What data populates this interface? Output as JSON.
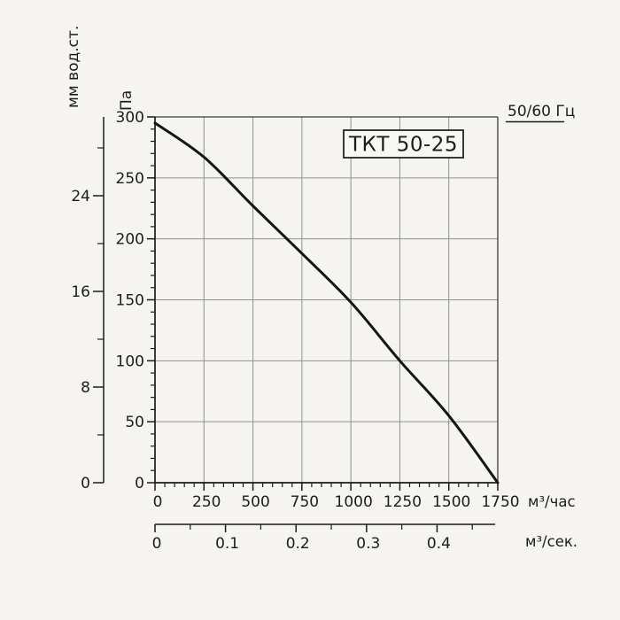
{
  "labels": {
    "title": "ТКТ 50-25",
    "frequency": "50/60 Гц",
    "pa_unit": "Па",
    "mm_unit": "мм вод.ст.",
    "flow_hour_unit": "м³/час",
    "flow_sec_unit": "м³/сек."
  },
  "colors": {
    "background": "#f5f4f0",
    "curve": "#151515",
    "grid": "#919191",
    "axis": "#1b1b1b",
    "border": "#3a3a3a",
    "text": "#1c1c1c"
  },
  "chart_data": {
    "type": "line",
    "title": "ТКТ 50-25",
    "annotations": [
      "50/60 Гц"
    ],
    "xlabel": "м³/час",
    "ylabel": "Па",
    "xlim": [
      0,
      1750
    ],
    "ylim": [
      0,
      300
    ],
    "grid": true,
    "series": [
      {
        "name": "ТКТ 50-25",
        "x": [
          0,
          250,
          500,
          750,
          1000,
          1250,
          1500,
          1750
        ],
        "values": [
          295,
          267,
          227,
          188,
          148,
          100,
          55,
          0
        ]
      }
    ],
    "x_axis": {
      "unit": "м³/час",
      "major_ticks": [
        0,
        250,
        500,
        750,
        1000,
        1250,
        1500,
        1750
      ],
      "minor_step": 50
    },
    "y_axis": {
      "unit": "Па",
      "major_ticks": [
        0,
        50,
        100,
        150,
        200,
        250,
        300
      ],
      "minor_step": 10
    },
    "secondary_y_axis": {
      "unit": "мм вод.ст.",
      "major_ticks": [
        0,
        8,
        16,
        24
      ],
      "minor_ticks": [
        4,
        12,
        20,
        28
      ],
      "pa_per_unit": 9.80665
    },
    "secondary_x_axis": {
      "unit": "м³/сек.",
      "major_ticks": [
        "0",
        "0.1",
        "0.2",
        "0.3",
        "0.4"
      ],
      "minor_ticks": [
        0.05,
        0.15,
        0.25,
        0.35,
        0.45
      ],
      "hour_per_unit": 3600
    }
  }
}
